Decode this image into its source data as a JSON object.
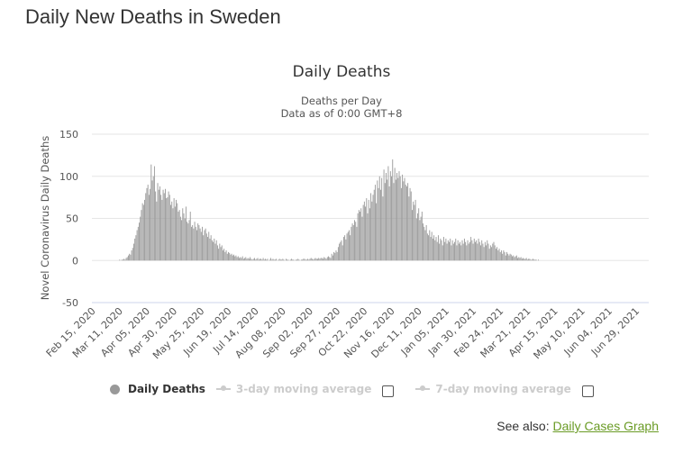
{
  "page": {
    "title": "Daily New Deaths in Sweden"
  },
  "see_also": {
    "label": "See also:",
    "link": "Daily Cases Graph"
  },
  "legend": {
    "items": [
      {
        "label": "Daily Deaths",
        "active": true
      },
      {
        "label": "3-day moving average",
        "active": false
      },
      {
        "label": "7-day moving average",
        "active": false
      }
    ]
  },
  "colors": {
    "bar": "#999999",
    "grid": "#e6e6e6",
    "link": "#6a9b25"
  },
  "chart_data": {
    "type": "bar",
    "title": "Daily Deaths",
    "subtitle": [
      "Deaths per Day",
      "Data as of 0:00 GMT+8"
    ],
    "xlabel": "",
    "ylabel": "Novel Coronavirus Daily Deaths",
    "ylim": [
      -50,
      150
    ],
    "yticks": [
      150,
      100,
      50,
      0,
      -50
    ],
    "grid": true,
    "legend_position": "bottom",
    "x_start": "2020-02-15",
    "x_tick_interval_days": 25,
    "xticks": [
      "Feb 15, 2020",
      "Mar 11, 2020",
      "Apr 05, 2020",
      "Apr 30, 2020",
      "May 25, 2020",
      "Jun 19, 2020",
      "Jul 14, 2020",
      "Aug 08, 2020",
      "Sep 02, 2020",
      "Sep 27, 2020",
      "Oct 22, 2020",
      "Nov 16, 2020",
      "Dec 11, 2020",
      "Jan 05, 2021",
      "Jan 30, 2021",
      "Feb 24, 2021",
      "Mar 21, 2021",
      "Apr 15, 2021",
      "May 10, 2021",
      "Jun 04, 2021",
      "Jun 29, 2021"
    ],
    "series": [
      {
        "name": "Daily Deaths",
        "values": [
          0,
          0,
          0,
          0,
          0,
          0,
          0,
          0,
          0,
          0,
          0,
          0,
          0,
          0,
          0,
          0,
          0,
          0,
          0,
          0,
          0,
          0,
          0,
          0,
          0,
          1,
          0,
          1,
          1,
          2,
          1,
          3,
          4,
          6,
          8,
          7,
          12,
          15,
          20,
          26,
          30,
          36,
          40,
          45,
          52,
          60,
          68,
          66,
          72,
          80,
          86,
          90,
          78,
          85,
          114,
          95,
          100,
          112,
          82,
          70,
          92,
          84,
          88,
          78,
          72,
          84,
          80,
          85,
          74,
          75,
          82,
          78,
          66,
          70,
          62,
          74,
          64,
          72,
          68,
          58,
          60,
          52,
          48,
          62,
          56,
          50,
          64,
          46,
          44,
          48,
          58,
          40,
          42,
          38,
          46,
          40,
          36,
          44,
          42,
          38,
          34,
          40,
          30,
          36,
          38,
          32,
          28,
          34,
          26,
          30,
          24,
          22,
          26,
          20,
          24,
          18,
          14,
          20,
          16,
          18,
          12,
          14,
          10,
          12,
          8,
          10,
          9,
          7,
          8,
          6,
          7,
          5,
          6,
          4,
          5,
          3,
          4,
          3,
          5,
          2,
          3,
          4,
          2,
          3,
          2,
          4,
          2,
          1,
          2,
          3,
          1,
          2,
          3,
          1,
          2,
          2,
          1,
          3,
          1,
          2,
          1,
          2,
          0,
          1,
          3,
          1,
          2,
          1,
          1,
          2,
          0,
          1,
          2,
          1,
          1,
          2,
          1,
          0,
          2,
          1,
          1,
          0,
          1,
          2,
          1,
          1,
          0,
          1,
          1,
          2,
          1,
          0,
          1,
          1,
          2,
          2,
          1,
          1,
          2,
          1,
          2,
          3,
          2,
          1,
          2,
          3,
          2,
          2,
          3,
          2,
          3,
          3,
          2,
          4,
          3,
          2,
          4,
          5,
          4,
          3,
          8,
          6,
          10,
          9,
          12,
          10,
          16,
          20,
          22,
          24,
          18,
          28,
          30,
          25,
          32,
          34,
          36,
          30,
          40,
          44,
          42,
          48,
          46,
          40,
          56,
          60,
          58,
          62,
          52,
          66,
          70,
          64,
          74,
          56,
          72,
          62,
          80,
          70,
          78,
          84,
          90,
          68,
          95,
          86,
          100,
          84,
          98,
          76,
          108,
          92,
          104,
          96,
          112,
          88,
          106,
          100,
          120,
          92,
          110,
          96,
          104,
          98,
          106,
          100,
          86,
          102,
          94,
          98,
          90,
          88,
          92,
          76,
          86,
          82,
          60,
          70,
          66,
          72,
          50,
          56,
          62,
          48,
          52,
          58,
          44,
          40,
          36,
          42,
          32,
          30,
          36,
          28,
          34,
          26,
          30,
          24,
          28,
          22,
          30,
          20,
          26,
          24,
          18,
          28,
          22,
          26,
          20,
          24,
          22,
          26,
          18,
          24,
          20,
          22,
          26,
          18,
          24,
          20,
          22,
          18,
          24,
          20,
          26,
          22,
          18,
          24,
          20,
          22,
          28,
          24,
          20,
          26,
          22,
          24,
          20,
          26,
          22,
          18,
          24,
          20,
          16,
          22,
          18,
          24,
          20,
          14,
          18,
          16,
          20,
          22,
          18,
          14,
          16,
          12,
          14,
          10,
          12,
          8,
          12,
          10,
          6,
          10,
          8,
          6,
          8,
          7,
          5,
          6,
          4,
          5,
          6,
          3,
          4,
          3,
          4,
          2,
          3,
          2,
          2,
          3,
          1,
          2,
          2,
          1,
          1,
          2,
          1,
          1,
          1,
          0,
          1
        ]
      }
    ]
  }
}
